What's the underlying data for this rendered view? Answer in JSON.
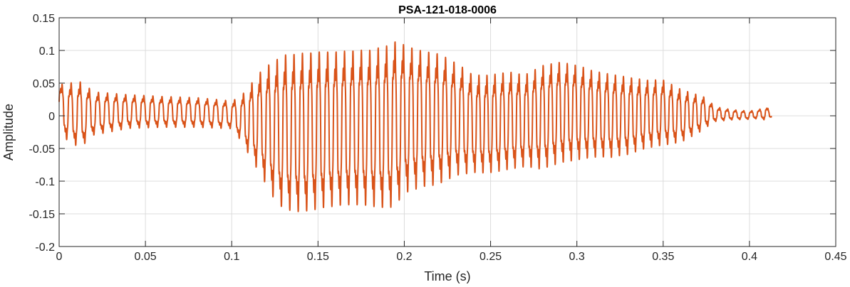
{
  "chart_data": {
    "type": "line",
    "title": "PSA-121-018-0006",
    "xlabel": "Time (s)",
    "ylabel": "Amplitude",
    "xlim": [
      0,
      0.45
    ],
    "ylim": [
      -0.2,
      0.15
    ],
    "xticks": [
      0,
      0.05,
      0.1,
      0.15,
      0.2,
      0.25,
      0.3,
      0.35,
      0.4,
      0.45
    ],
    "xtick_labels": [
      "0",
      "0.05",
      "0.1",
      "0.15",
      "0.2",
      "0.25",
      "0.3",
      "0.35",
      "0.4",
      "0.45"
    ],
    "yticks": [
      -0.2,
      -0.15,
      -0.1,
      -0.05,
      0,
      0.05,
      0.1,
      0.15
    ],
    "ytick_labels": [
      "-0.2",
      "-0.15",
      "-0.1",
      "-0.05",
      "0",
      "0.05",
      "0.1",
      "0.15"
    ],
    "grid": true,
    "line_color": "#D95319",
    "series": [
      {
        "duration_s": 0.413,
        "envelope": {
          "t": [
            0,
            0.003,
            0.006,
            0.013,
            0.02,
            0.04,
            0.06,
            0.08,
            0.1,
            0.105,
            0.11,
            0.115,
            0.12,
            0.125,
            0.13,
            0.14,
            0.15,
            0.16,
            0.17,
            0.18,
            0.19,
            0.195,
            0.2,
            0.21,
            0.22,
            0.23,
            0.24,
            0.25,
            0.26,
            0.27,
            0.28,
            0.29,
            0.3,
            0.31,
            0.32,
            0.33,
            0.34,
            0.35,
            0.36,
            0.37,
            0.375,
            0.38,
            0.39,
            0.4,
            0.405,
            0.41,
            0.413
          ],
          "max": [
            0.055,
            0.05,
            0.055,
            0.057,
            0.04,
            0.035,
            0.032,
            0.03,
            0.025,
            0.032,
            0.05,
            0.07,
            0.085,
            0.095,
            0.105,
            0.108,
            0.11,
            0.11,
            0.112,
            0.113,
            0.12,
            0.127,
            0.12,
            0.11,
            0.105,
            0.09,
            0.07,
            0.07,
            0.075,
            0.07,
            0.085,
            0.09,
            0.085,
            0.075,
            0.07,
            0.065,
            0.06,
            0.06,
            0.045,
            0.035,
            0.03,
            0.015,
            0.01,
            0.008,
            0.01,
            0.015,
            0.003
          ],
          "min": [
            -0.02,
            -0.035,
            -0.048,
            -0.052,
            -0.033,
            -0.022,
            -0.02,
            -0.02,
            -0.022,
            -0.04,
            -0.065,
            -0.09,
            -0.115,
            -0.14,
            -0.155,
            -0.16,
            -0.155,
            -0.15,
            -0.148,
            -0.15,
            -0.155,
            -0.15,
            -0.13,
            -0.12,
            -0.115,
            -0.1,
            -0.095,
            -0.095,
            -0.09,
            -0.085,
            -0.09,
            -0.08,
            -0.075,
            -0.07,
            -0.07,
            -0.065,
            -0.055,
            -0.05,
            -0.045,
            -0.03,
            -0.02,
            -0.01,
            -0.007,
            -0.006,
            -0.005,
            -0.008,
            -0.002
          ]
        }
      }
    ]
  }
}
